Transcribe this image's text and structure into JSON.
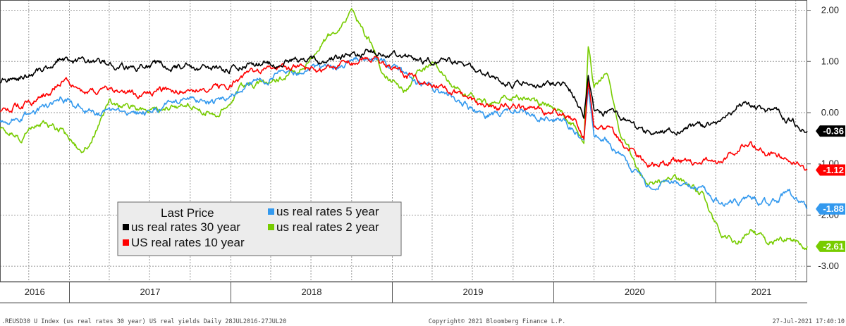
{
  "chart_data": {
    "type": "line",
    "legend": {
      "title": "Last Price",
      "placement": "lower-left",
      "entries": [
        {
          "name": "us real rates 30 year",
          "color": "#000000"
        },
        {
          "name": "US real rates 10 year",
          "color": "#ff0000"
        },
        {
          "name": "us real rates 5 year",
          "color": "#3399ee"
        },
        {
          "name": "us real rates 2 year",
          "color": "#77cc00"
        }
      ]
    },
    "x_years": [
      "2016",
      "2017",
      "2018",
      "2019",
      "2020",
      "2021"
    ],
    "xlim": [
      "2016-07-28",
      "2021-07-27"
    ],
    "ylim": [
      -3.3,
      2.2
    ],
    "y_ticks": [
      2.0,
      1.0,
      0.0,
      -1.0,
      -2.0,
      -3.0
    ],
    "y_tick_labels": [
      "2.00",
      "1.00",
      "0.00",
      "-1.00",
      "-2.00",
      "-3.00"
    ],
    "y_axis_side": "right",
    "grid": true,
    "series": [
      {
        "name": "us real rates 30 year",
        "color": "#000000",
        "last": -0.36,
        "last_label": "-0.36",
        "points": [
          [
            "2016-07-28",
            0.62
          ],
          [
            "2016-09-15",
            0.7
          ],
          [
            "2016-11-01",
            0.85
          ],
          [
            "2016-12-15",
            1.08
          ],
          [
            "2017-02-01",
            0.95
          ],
          [
            "2017-04-01",
            0.92
          ],
          [
            "2017-06-01",
            0.88
          ],
          [
            "2017-08-01",
            0.92
          ],
          [
            "2017-10-01",
            0.9
          ],
          [
            "2017-12-01",
            0.82
          ],
          [
            "2018-02-01",
            0.95
          ],
          [
            "2018-04-01",
            0.96
          ],
          [
            "2018-06-01",
            1.0
          ],
          [
            "2018-08-01",
            1.0
          ],
          [
            "2018-10-01",
            1.1
          ],
          [
            "2018-11-10",
            1.22
          ],
          [
            "2018-12-15",
            1.15
          ],
          [
            "2019-02-01",
            1.08
          ],
          [
            "2019-04-01",
            1.02
          ],
          [
            "2019-06-01",
            0.95
          ],
          [
            "2019-08-01",
            0.75
          ],
          [
            "2019-10-01",
            0.62
          ],
          [
            "2019-12-01",
            0.55
          ],
          [
            "2020-01-20",
            0.55
          ],
          [
            "2020-02-20",
            0.3
          ],
          [
            "2020-03-09",
            -0.05
          ],
          [
            "2020-03-19",
            0.75
          ],
          [
            "2020-04-01",
            0.1
          ],
          [
            "2020-05-01",
            0.0
          ],
          [
            "2020-06-01",
            -0.05
          ],
          [
            "2020-08-01",
            -0.42
          ],
          [
            "2020-10-01",
            -0.32
          ],
          [
            "2020-12-01",
            -0.25
          ],
          [
            "2021-01-15",
            -0.22
          ],
          [
            "2021-02-20",
            0.2
          ],
          [
            "2021-03-20",
            0.12
          ],
          [
            "2021-05-01",
            0.05
          ],
          [
            "2021-06-15",
            -0.12
          ],
          [
            "2021-07-27",
            -0.36
          ]
        ]
      },
      {
        "name": "US real rates 10 year",
        "color": "#ff0000",
        "last": -1.12,
        "last_label": "-1.12",
        "points": [
          [
            "2016-07-28",
            0.05
          ],
          [
            "2016-09-15",
            0.15
          ],
          [
            "2016-11-01",
            0.3
          ],
          [
            "2016-12-15",
            0.65
          ],
          [
            "2017-02-01",
            0.45
          ],
          [
            "2017-04-01",
            0.42
          ],
          [
            "2017-06-01",
            0.35
          ],
          [
            "2017-08-01",
            0.45
          ],
          [
            "2017-10-01",
            0.5
          ],
          [
            "2017-12-01",
            0.45
          ],
          [
            "2018-02-01",
            0.7
          ],
          [
            "2018-04-01",
            0.8
          ],
          [
            "2018-06-01",
            0.85
          ],
          [
            "2018-08-01",
            0.85
          ],
          [
            "2018-10-01",
            1.0
          ],
          [
            "2018-11-10",
            1.1
          ],
          [
            "2018-12-15",
            0.95
          ],
          [
            "2019-02-01",
            0.75
          ],
          [
            "2019-04-01",
            0.55
          ],
          [
            "2019-06-01",
            0.35
          ],
          [
            "2019-08-01",
            0.1
          ],
          [
            "2019-10-01",
            0.15
          ],
          [
            "2019-12-01",
            0.05
          ],
          [
            "2020-01-20",
            -0.05
          ],
          [
            "2020-02-20",
            -0.2
          ],
          [
            "2020-03-09",
            -0.45
          ],
          [
            "2020-03-19",
            0.7
          ],
          [
            "2020-04-01",
            -0.3
          ],
          [
            "2020-05-01",
            -0.4
          ],
          [
            "2020-06-01",
            -0.6
          ],
          [
            "2020-08-01",
            -1.05
          ],
          [
            "2020-10-01",
            -0.95
          ],
          [
            "2020-12-01",
            -1.0
          ],
          [
            "2021-01-15",
            -1.0
          ],
          [
            "2021-02-20",
            -0.65
          ],
          [
            "2021-03-20",
            -0.6
          ],
          [
            "2021-05-01",
            -0.8
          ],
          [
            "2021-06-15",
            -0.85
          ],
          [
            "2021-07-27",
            -1.12
          ]
        ]
      },
      {
        "name": "us real rates 5 year",
        "color": "#3399ee",
        "last": -1.88,
        "last_label": "-1.88",
        "points": [
          [
            "2016-07-28",
            -0.15
          ],
          [
            "2016-09-15",
            -0.05
          ],
          [
            "2016-11-01",
            0.05
          ],
          [
            "2016-12-15",
            0.3
          ],
          [
            "2017-02-01",
            0.05
          ],
          [
            "2017-04-01",
            0.0
          ],
          [
            "2017-06-01",
            -0.05
          ],
          [
            "2017-08-01",
            0.1
          ],
          [
            "2017-10-01",
            0.25
          ],
          [
            "2017-12-01",
            0.2
          ],
          [
            "2018-02-01",
            0.55
          ],
          [
            "2018-04-01",
            0.72
          ],
          [
            "2018-06-01",
            0.8
          ],
          [
            "2018-08-01",
            0.85
          ],
          [
            "2018-10-01",
            0.95
          ],
          [
            "2018-11-10",
            1.08
          ],
          [
            "2018-12-15",
            0.95
          ],
          [
            "2019-02-01",
            0.7
          ],
          [
            "2019-04-01",
            0.45
          ],
          [
            "2019-06-01",
            0.2
          ],
          [
            "2019-08-01",
            -0.05
          ],
          [
            "2019-10-01",
            0.05
          ],
          [
            "2019-12-01",
            -0.05
          ],
          [
            "2020-01-20",
            -0.15
          ],
          [
            "2020-02-20",
            -0.35
          ],
          [
            "2020-03-09",
            -0.6
          ],
          [
            "2020-03-19",
            0.5
          ],
          [
            "2020-04-01",
            -0.45
          ],
          [
            "2020-05-01",
            -0.55
          ],
          [
            "2020-06-01",
            -0.8
          ],
          [
            "2020-08-01",
            -1.4
          ],
          [
            "2020-10-01",
            -1.3
          ],
          [
            "2020-12-01",
            -1.5
          ],
          [
            "2021-01-15",
            -1.75
          ],
          [
            "2021-02-20",
            -1.75
          ],
          [
            "2021-03-20",
            -1.6
          ],
          [
            "2021-05-01",
            -1.8
          ],
          [
            "2021-06-15",
            -1.55
          ],
          [
            "2021-07-27",
            -1.88
          ]
        ]
      },
      {
        "name": "us real rates 2 year",
        "color": "#77cc00",
        "last": -2.61,
        "last_label": "-2.61",
        "points": [
          [
            "2016-07-28",
            -0.3
          ],
          [
            "2016-09-15",
            -0.5
          ],
          [
            "2016-11-01",
            -0.2
          ],
          [
            "2016-12-15",
            -0.35
          ],
          [
            "2017-02-01",
            -0.85
          ],
          [
            "2017-04-01",
            0.15
          ],
          [
            "2017-06-01",
            0.05
          ],
          [
            "2017-08-01",
            0.1
          ],
          [
            "2017-10-01",
            0.15
          ],
          [
            "2017-12-01",
            0.05
          ],
          [
            "2018-02-01",
            0.5
          ],
          [
            "2018-04-01",
            0.6
          ],
          [
            "2018-06-01",
            0.8
          ],
          [
            "2018-08-01",
            1.4
          ],
          [
            "2018-10-01",
            1.9
          ],
          [
            "2018-11-10",
            1.4
          ],
          [
            "2018-12-15",
            0.7
          ],
          [
            "2019-02-01",
            0.45
          ],
          [
            "2019-04-01",
            0.95
          ],
          [
            "2019-06-01",
            0.4
          ],
          [
            "2019-08-01",
            0.15
          ],
          [
            "2019-10-01",
            0.35
          ],
          [
            "2019-12-01",
            0.2
          ],
          [
            "2020-01-20",
            0.0
          ],
          [
            "2020-02-20",
            -0.3
          ],
          [
            "2020-03-09",
            -0.6
          ],
          [
            "2020-03-19",
            1.4
          ],
          [
            "2020-04-01",
            0.5
          ],
          [
            "2020-05-01",
            0.8
          ],
          [
            "2020-06-01",
            -0.4
          ],
          [
            "2020-08-01",
            -1.5
          ],
          [
            "2020-10-01",
            -1.2
          ],
          [
            "2020-12-01",
            -1.6
          ],
          [
            "2021-01-15",
            -2.4
          ],
          [
            "2021-02-20",
            -2.55
          ],
          [
            "2021-03-20",
            -2.3
          ],
          [
            "2021-05-01",
            -2.55
          ],
          [
            "2021-06-15",
            -2.45
          ],
          [
            "2021-07-27",
            -2.61
          ]
        ]
      }
    ]
  },
  "footer": {
    "left": ".REUSD30 U Index (us real rates 30 year) US real yields  Daily 28JUL2016-27JUL20",
    "center": "Copyright© 2021 Bloomberg Finance L.P.",
    "right": "27-Jul-2021 17:40:10"
  }
}
